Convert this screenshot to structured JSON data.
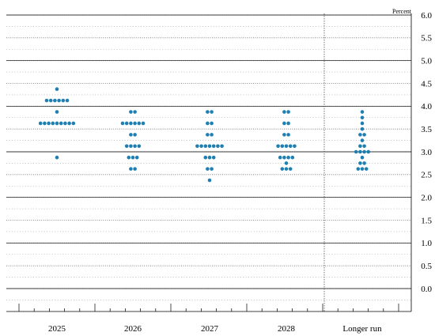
{
  "chart_data": {
    "type": "scatter",
    "unit_label": "Percent",
    "ylim": [
      -0.25,
      6.0
    ],
    "y_ticks": [
      6.0,
      5.5,
      5.0,
      4.5,
      4.0,
      3.5,
      3.0,
      2.5,
      2.0,
      1.5,
      1.0,
      0.5,
      0.0
    ],
    "y_tick_labels": [
      "6.0",
      "5.5",
      "5.0",
      "4.5",
      "4.0",
      "3.5",
      "3.0",
      "2.5",
      "2.0",
      "1.5",
      "1.0",
      "0.5",
      "0.0"
    ],
    "categories": [
      "2025",
      "2026",
      "2027",
      "2028",
      "Longer run"
    ],
    "grid": true,
    "dot_color": "#1f7fb0",
    "series": [
      {
        "category": "2025",
        "points": [
          {
            "y": 4.375,
            "n": 1
          },
          {
            "y": 4.125,
            "n": 6
          },
          {
            "y": 3.875,
            "n": 1
          },
          {
            "y": 3.625,
            "n": 9
          },
          {
            "y": 2.875,
            "n": 1
          }
        ]
      },
      {
        "category": "2026",
        "points": [
          {
            "y": 3.875,
            "n": 2
          },
          {
            "y": 3.625,
            "n": 6
          },
          {
            "y": 3.375,
            "n": 2
          },
          {
            "y": 3.125,
            "n": 4
          },
          {
            "y": 2.875,
            "n": 3
          },
          {
            "y": 2.625,
            "n": 2
          }
        ]
      },
      {
        "category": "2027",
        "points": [
          {
            "y": 3.875,
            "n": 2
          },
          {
            "y": 3.625,
            "n": 2
          },
          {
            "y": 3.375,
            "n": 2
          },
          {
            "y": 3.125,
            "n": 7
          },
          {
            "y": 2.875,
            "n": 3
          },
          {
            "y": 2.625,
            "n": 2
          },
          {
            "y": 2.375,
            "n": 1
          }
        ]
      },
      {
        "category": "2028",
        "points": [
          {
            "y": 3.875,
            "n": 2
          },
          {
            "y": 3.625,
            "n": 2
          },
          {
            "y": 3.375,
            "n": 2
          },
          {
            "y": 3.125,
            "n": 5
          },
          {
            "y": 2.875,
            "n": 4
          },
          {
            "y": 2.75,
            "n": 1
          },
          {
            "y": 2.625,
            "n": 3
          }
        ]
      },
      {
        "category": "Longer run",
        "points": [
          {
            "y": 3.875,
            "n": 1
          },
          {
            "y": 3.75,
            "n": 1
          },
          {
            "y": 3.625,
            "n": 1
          },
          {
            "y": 3.5,
            "n": 1
          },
          {
            "y": 3.375,
            "n": 2
          },
          {
            "y": 3.25,
            "n": 1
          },
          {
            "y": 3.125,
            "n": 2
          },
          {
            "y": 3.0,
            "n": 4
          },
          {
            "y": 2.875,
            "n": 1
          },
          {
            "y": 2.75,
            "n": 2
          },
          {
            "y": 2.625,
            "n": 3
          }
        ]
      }
    ]
  }
}
